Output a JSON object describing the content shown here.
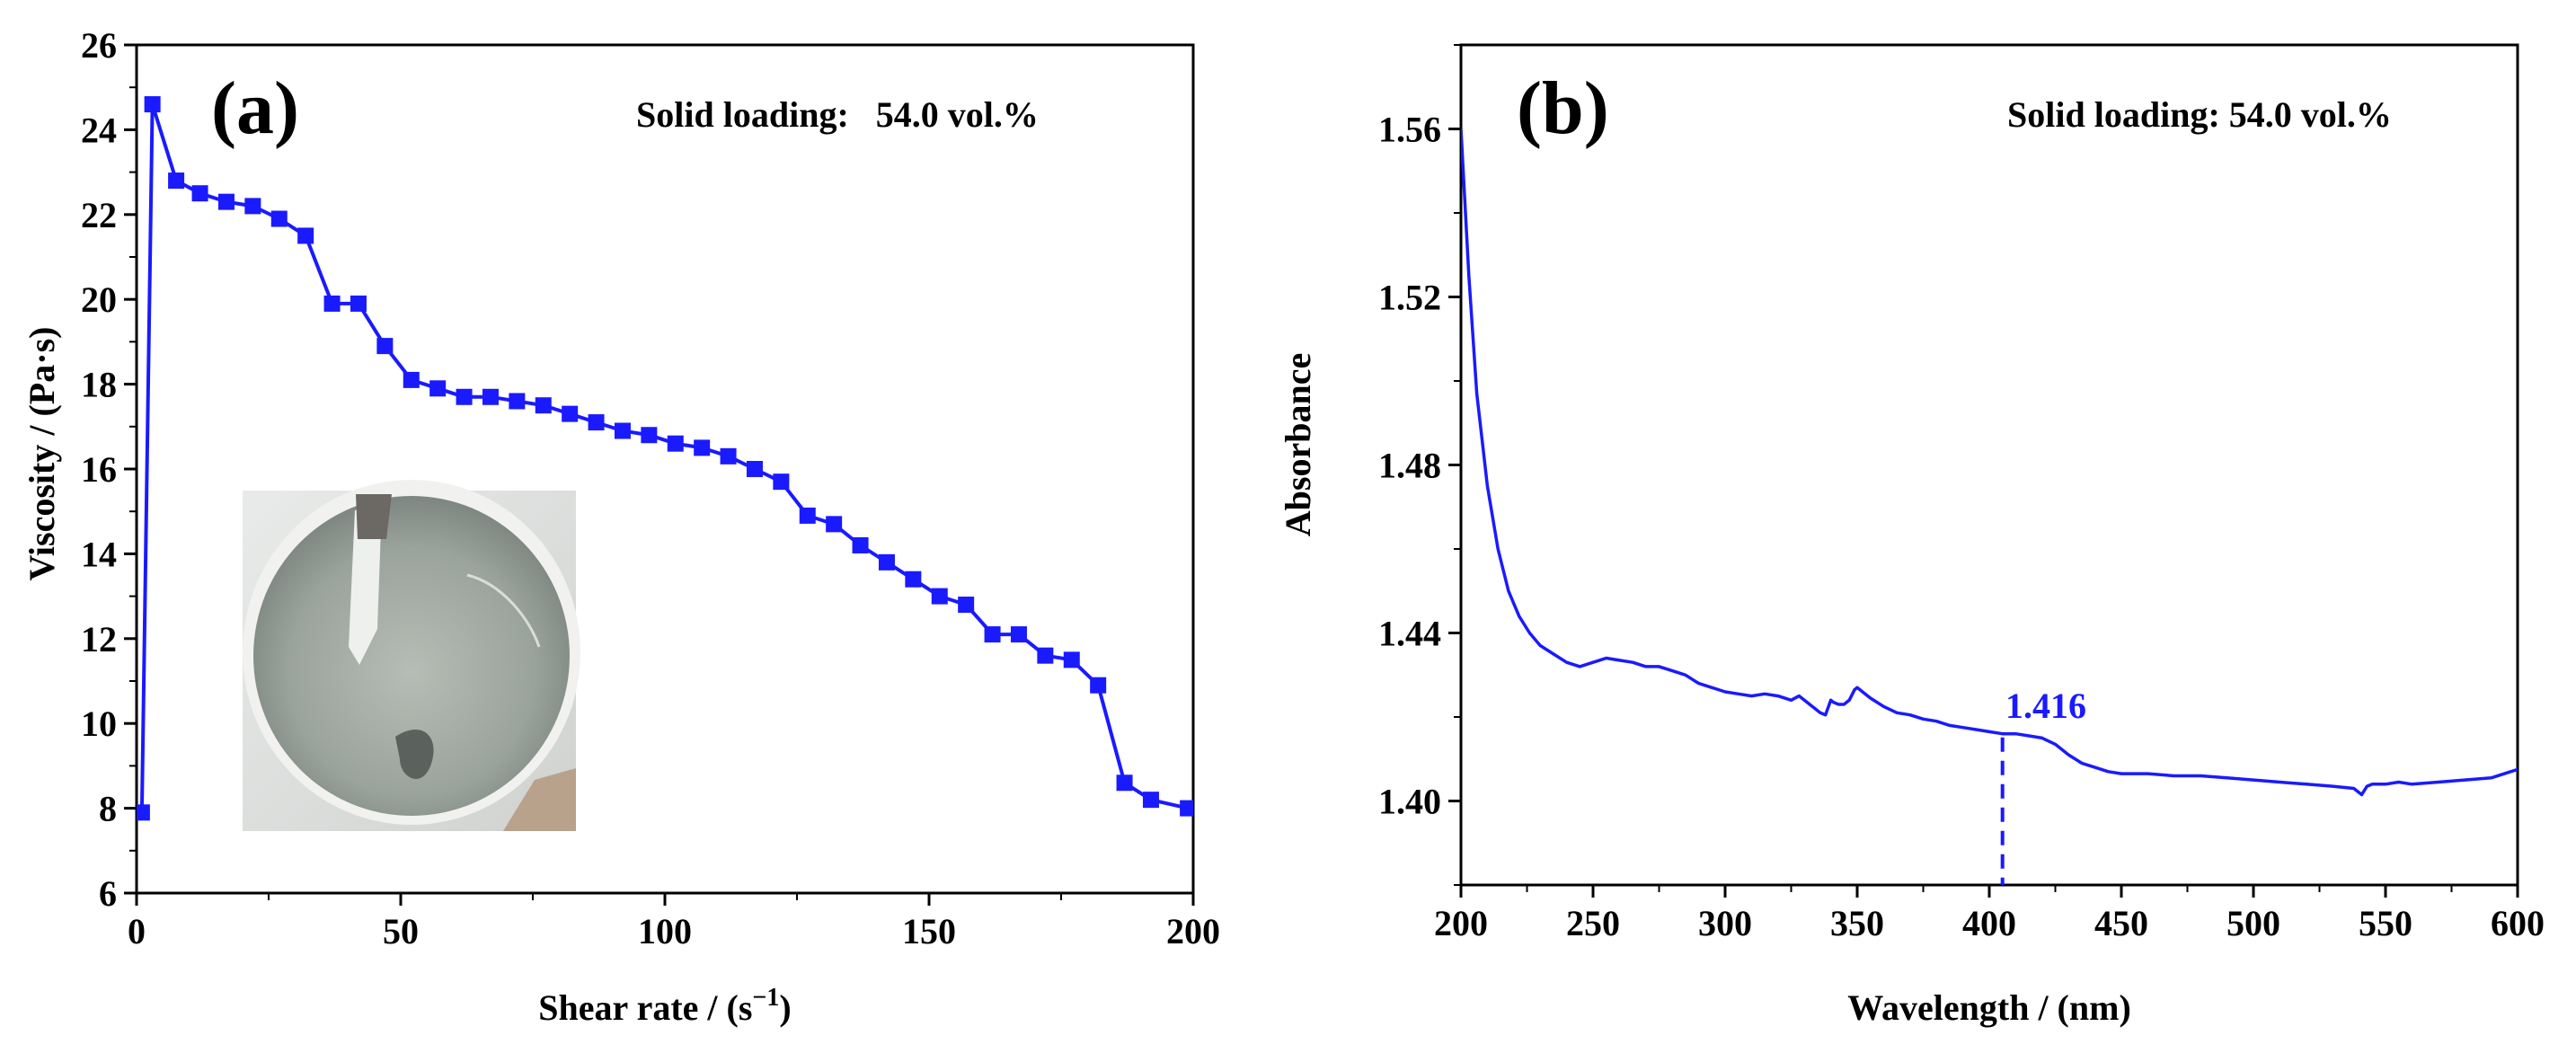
{
  "chart_data": [
    {
      "type": "line",
      "panel_label": "(a)",
      "annotation": "Solid loading:   54.0 vol.%",
      "xlabel_main": "Shear rate / (s",
      "xlabel_sup": "−1",
      "xlabel_close": ")",
      "ylabel": "Viscosity / (Pa·s)",
      "xlim": [
        0,
        200
      ],
      "ylim": [
        6,
        26
      ],
      "xticks": [
        0,
        50,
        100,
        150,
        200
      ],
      "yticks": [
        6,
        8,
        10,
        12,
        14,
        16,
        18,
        20,
        22,
        24,
        26
      ],
      "inset_photo": "slurry-in-cup-photo",
      "color": "#1a1aff",
      "series": [
        {
          "name": "Viscosity",
          "marker": "square",
          "x": [
            1,
            3,
            7.5,
            12,
            17,
            22,
            27,
            32,
            37,
            42,
            47,
            52,
            57,
            62,
            67,
            72,
            77,
            82,
            87,
            92,
            97,
            102,
            107,
            112,
            117,
            122,
            127,
            132,
            137,
            142,
            147,
            152,
            157,
            162,
            167,
            172,
            177,
            182,
            187,
            192,
            199
          ],
          "y": [
            7.9,
            24.6,
            22.8,
            22.5,
            22.3,
            22.2,
            21.9,
            21.5,
            19.9,
            19.9,
            18.9,
            18.1,
            17.9,
            17.7,
            17.7,
            17.6,
            17.5,
            17.3,
            17.1,
            16.9,
            16.8,
            16.6,
            16.5,
            16.3,
            16.0,
            15.7,
            14.9,
            14.7,
            14.2,
            13.8,
            13.4,
            13.0,
            12.8,
            12.1,
            12.1,
            11.6,
            11.5,
            10.9,
            8.6,
            8.2,
            8.0
          ]
        }
      ]
    },
    {
      "type": "line",
      "panel_label": "(b)",
      "annotation": "Solid loading: 54.0 vol.%",
      "xlabel": "Wavelength / (nm)",
      "ylabel": "Absorbance",
      "xlim": [
        200,
        600
      ],
      "ylim": [
        1.38,
        1.58
      ],
      "xticks": [
        200,
        250,
        300,
        350,
        400,
        450,
        500,
        550,
        600
      ],
      "yticks": [
        1.4,
        1.44,
        1.48,
        1.52,
        1.56
      ],
      "ytick_labels": [
        "1.40",
        "1.44",
        "1.48",
        "1.52",
        "1.56"
      ],
      "color": "#1a1aff",
      "marker_value_label": "1.416",
      "marker_x": 405,
      "marker_y": 1.416,
      "series": [
        {
          "name": "Absorbance",
          "x": [
            200,
            203,
            206,
            210,
            214,
            218,
            222,
            226,
            230,
            235,
            240,
            245,
            250,
            255,
            260,
            265,
            270,
            275,
            280,
            285,
            290,
            295,
            300,
            305,
            310,
            315,
            320,
            325,
            328,
            330,
            332,
            334,
            336,
            338,
            340,
            341,
            343,
            345,
            347,
            349,
            350,
            352,
            355,
            360,
            365,
            370,
            375,
            380,
            385,
            390,
            395,
            400,
            405,
            410,
            415,
            420,
            425,
            430,
            435,
            440,
            445,
            450,
            460,
            470,
            480,
            490,
            500,
            510,
            520,
            530,
            538,
            541,
            543,
            545,
            547,
            550,
            555,
            560,
            570,
            580,
            590,
            600
          ],
          "y": [
            1.56,
            1.525,
            1.497,
            1.475,
            1.46,
            1.45,
            1.444,
            1.44,
            1.437,
            1.435,
            1.433,
            1.432,
            1.433,
            1.434,
            1.4335,
            1.433,
            1.432,
            1.432,
            1.431,
            1.43,
            1.428,
            1.427,
            1.426,
            1.4255,
            1.425,
            1.4255,
            1.425,
            1.424,
            1.425,
            1.424,
            1.423,
            1.422,
            1.421,
            1.4205,
            1.424,
            1.4235,
            1.423,
            1.423,
            1.424,
            1.4265,
            1.427,
            1.426,
            1.4245,
            1.4225,
            1.421,
            1.4205,
            1.4195,
            1.419,
            1.418,
            1.4175,
            1.417,
            1.4165,
            1.416,
            1.416,
            1.4155,
            1.415,
            1.4135,
            1.411,
            1.409,
            1.408,
            1.407,
            1.4065,
            1.4065,
            1.406,
            1.406,
            1.4055,
            1.405,
            1.4045,
            1.404,
            1.4035,
            1.403,
            1.4015,
            1.4035,
            1.404,
            1.404,
            1.404,
            1.4045,
            1.404,
            1.4045,
            1.405,
            1.4055,
            1.4075
          ]
        }
      ]
    }
  ]
}
